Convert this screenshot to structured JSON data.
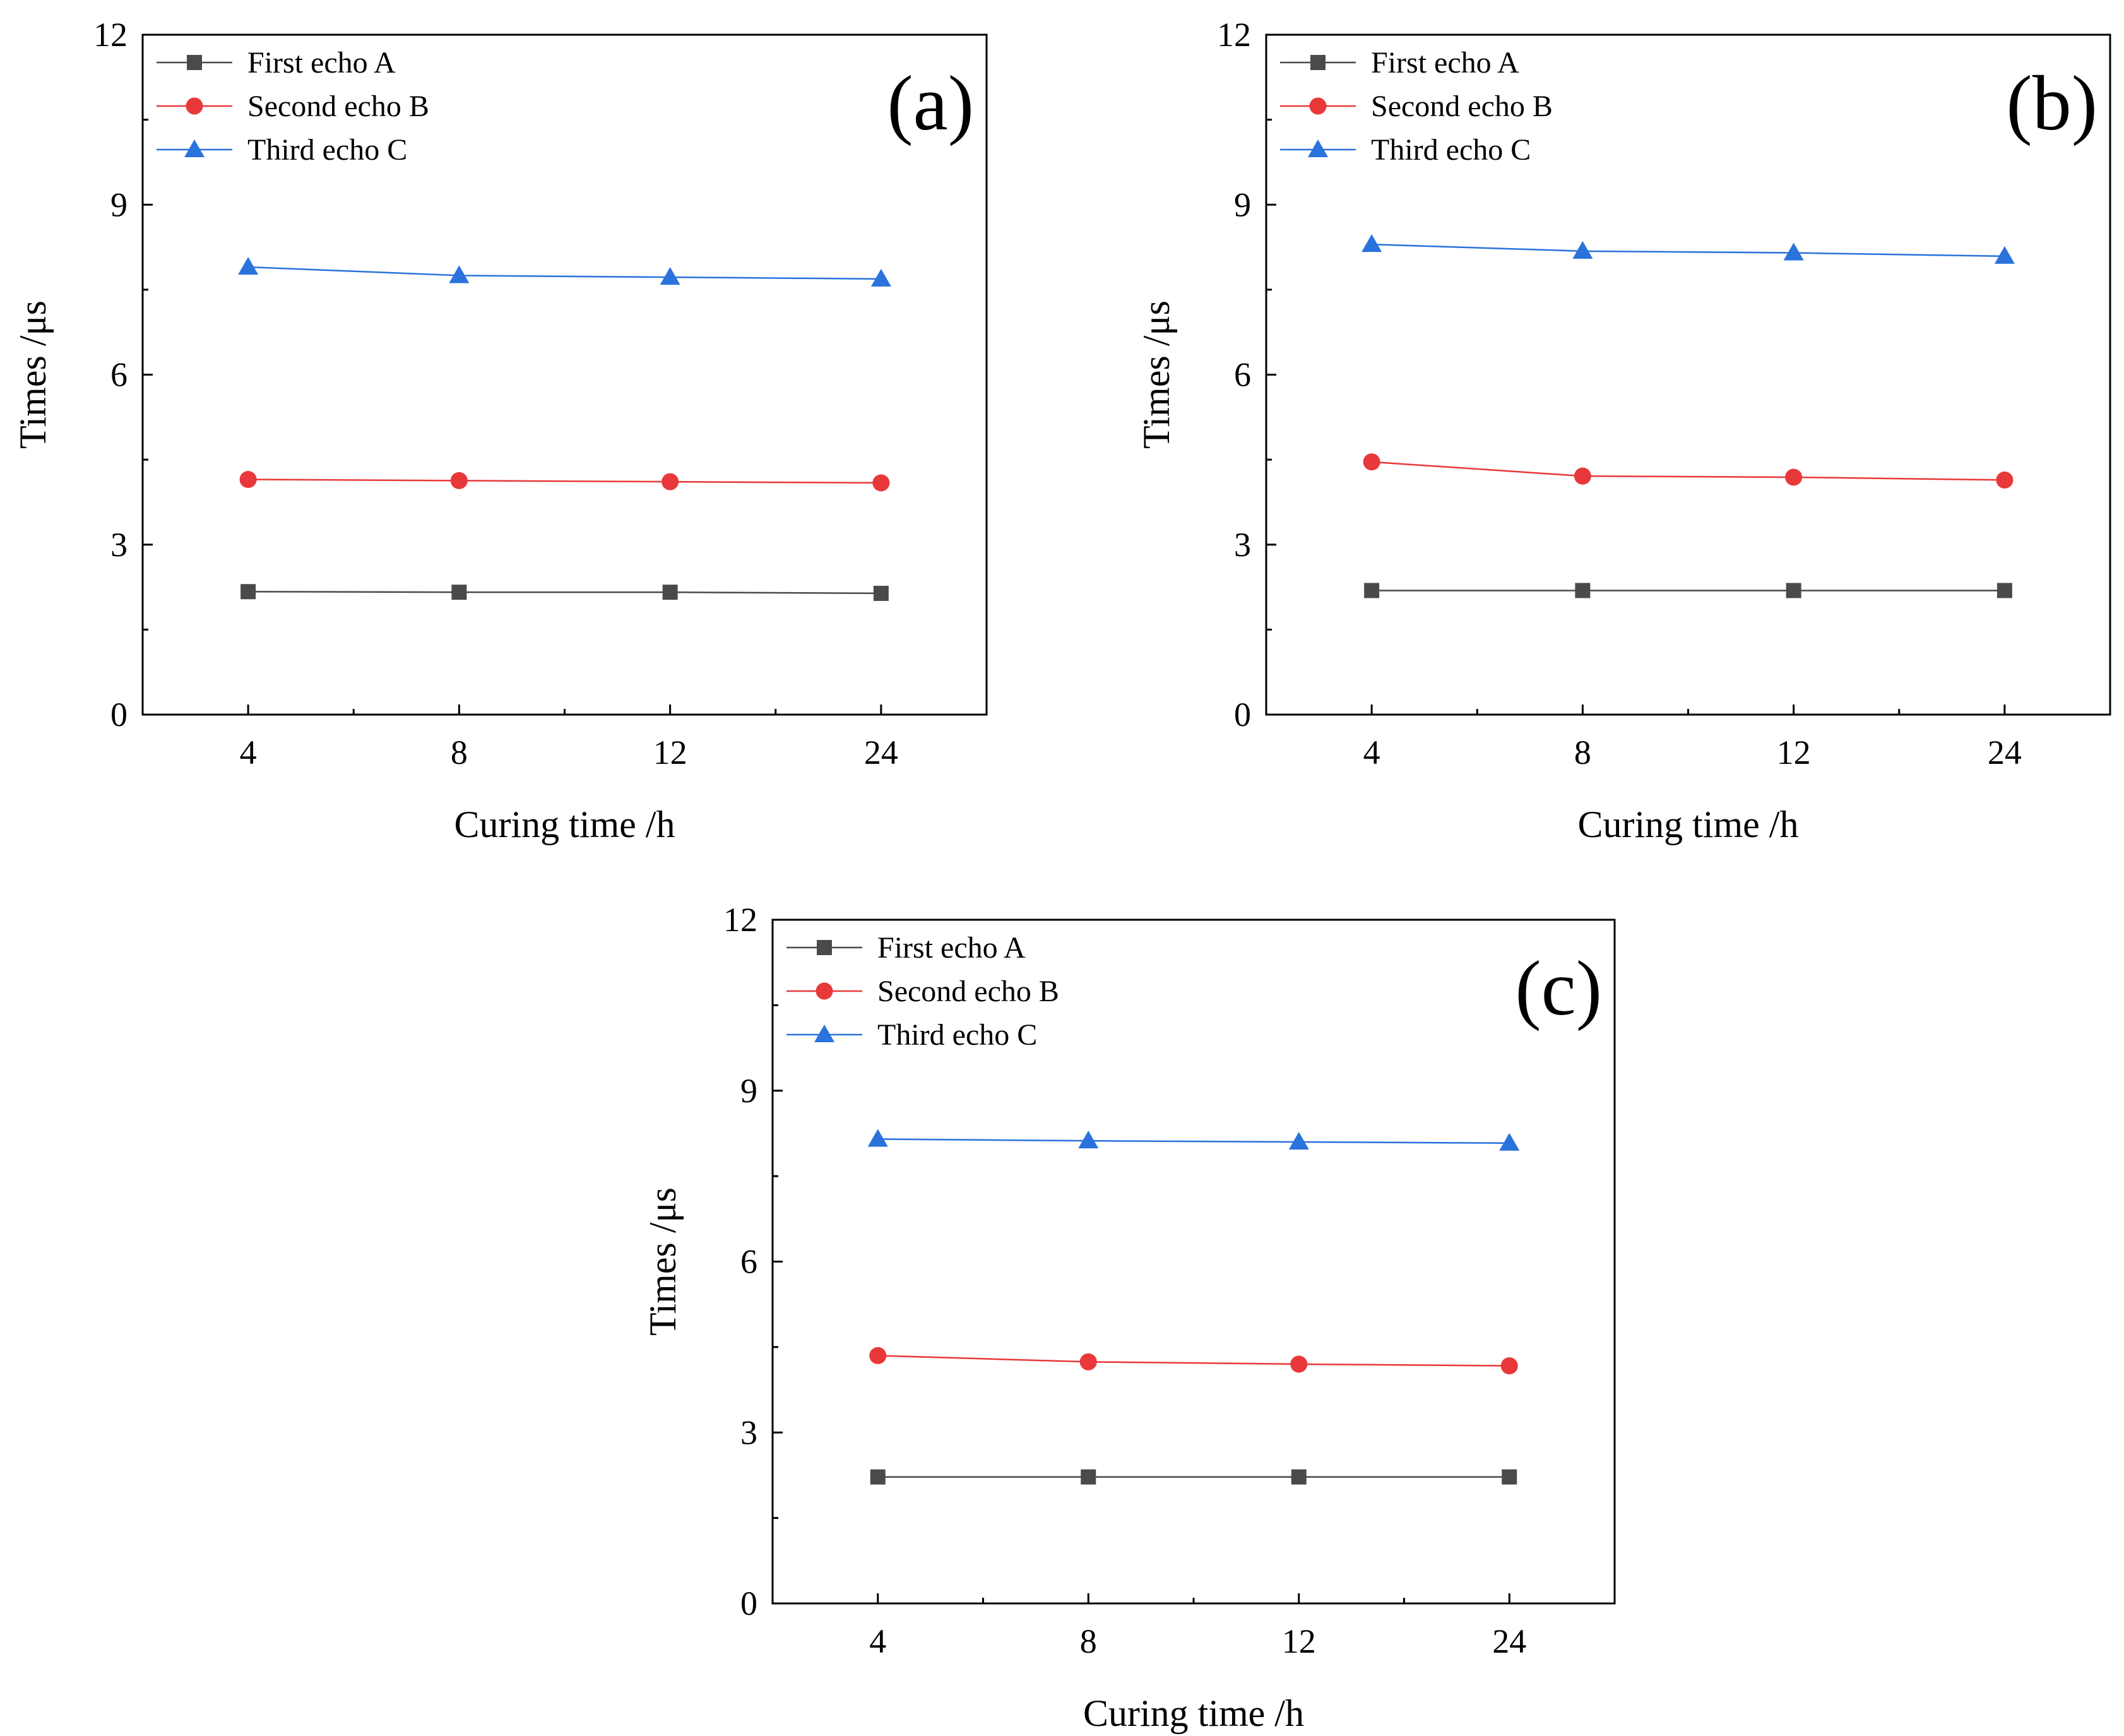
{
  "figure": {
    "colors": {
      "first_echo": "#4a4a4a",
      "second_echo": "#e8383a",
      "third_echo": "#2a72dc",
      "axis": "#000000"
    }
  },
  "chart_data": [
    {
      "id": "a",
      "panel_label": "(a)",
      "type": "line",
      "categories": [
        "4",
        "8",
        "12",
        "24"
      ],
      "xlabel": "Curing time /h",
      "ylabel": "Times /μs",
      "ylim": [
        0,
        12
      ],
      "yticks": [
        "0",
        "3",
        "6",
        "9",
        "12"
      ],
      "legend_position": "top-left",
      "series": [
        {
          "name": "First echo A",
          "marker": "square",
          "values": [
            2.17,
            2.16,
            2.16,
            2.14
          ]
        },
        {
          "name": "Second echo B",
          "marker": "circle",
          "values": [
            4.15,
            4.13,
            4.11,
            4.09
          ]
        },
        {
          "name": "Third echo C",
          "marker": "triangle",
          "values": [
            7.9,
            7.75,
            7.72,
            7.69
          ]
        }
      ]
    },
    {
      "id": "b",
      "panel_label": "(b)",
      "type": "line",
      "categories": [
        "4",
        "8",
        "12",
        "24"
      ],
      "xlabel": "Curing time /h",
      "ylabel": "Times /μs",
      "ylim": [
        0,
        12
      ],
      "yticks": [
        "0",
        "3",
        "6",
        "9",
        "12"
      ],
      "legend_position": "top-left",
      "series": [
        {
          "name": "First echo A",
          "marker": "square",
          "values": [
            2.19,
            2.19,
            2.19,
            2.19
          ]
        },
        {
          "name": "Second echo B",
          "marker": "circle",
          "values": [
            4.46,
            4.21,
            4.19,
            4.14
          ]
        },
        {
          "name": "Third echo C",
          "marker": "triangle",
          "values": [
            8.3,
            8.18,
            8.15,
            8.09
          ]
        }
      ]
    },
    {
      "id": "c",
      "panel_label": "(c)",
      "type": "line",
      "categories": [
        "4",
        "8",
        "12",
        "24"
      ],
      "xlabel": "Curing time /h",
      "ylabel": "Times /μs",
      "ylim": [
        0,
        12
      ],
      "yticks": [
        "0",
        "3",
        "6",
        "9",
        "12"
      ],
      "legend_position": "top-left",
      "series": [
        {
          "name": "First echo A",
          "marker": "square",
          "values": [
            2.22,
            2.22,
            2.22,
            2.22
          ]
        },
        {
          "name": "Second echo B",
          "marker": "circle",
          "values": [
            4.35,
            4.24,
            4.2,
            4.17
          ]
        },
        {
          "name": "Third echo C",
          "marker": "triangle",
          "values": [
            8.15,
            8.12,
            8.1,
            8.08
          ]
        }
      ]
    }
  ]
}
